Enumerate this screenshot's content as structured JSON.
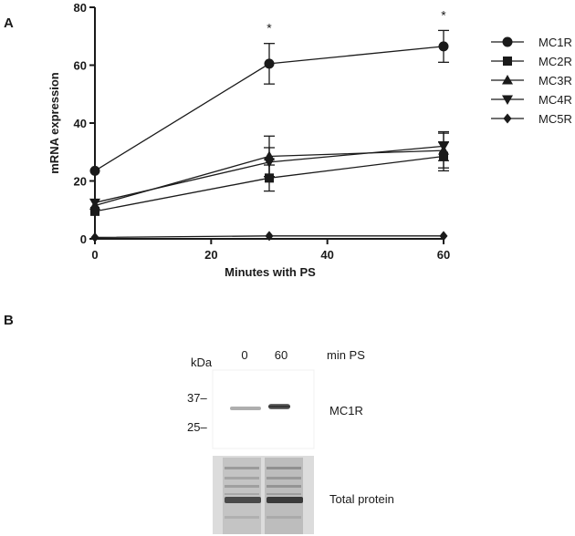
{
  "panel_a_label": "A",
  "panel_b_label": "B",
  "chart_data": {
    "type": "line",
    "xlabel": "Minutes with PS",
    "ylabel": "mRNA expression",
    "x": [
      0,
      30,
      60
    ],
    "xticks": [
      0,
      20,
      40,
      60
    ],
    "yticks": [
      0,
      20,
      40,
      60,
      80
    ],
    "xlim": [
      0,
      60
    ],
    "ylim": [
      0,
      80
    ],
    "legend_position": "right",
    "significance_marker": "*",
    "significance_x": [
      30,
      60
    ],
    "series": [
      {
        "name": "MC1R",
        "marker": "circle",
        "values": [
          23.5,
          60.5,
          66.5
        ],
        "errors": [
          0,
          7,
          5.5
        ]
      },
      {
        "name": "MC2R",
        "marker": "square",
        "values": [
          9.5,
          21,
          28.5
        ],
        "errors": [
          0,
          4.5,
          5
        ]
      },
      {
        "name": "MC3R",
        "marker": "triangle-up",
        "values": [
          11.5,
          28.5,
          30.5
        ],
        "errors": [
          0,
          7,
          6
        ]
      },
      {
        "name": "MC4R",
        "marker": "triangle-down",
        "values": [
          12.5,
          26.5,
          32
        ],
        "errors": [
          0,
          5,
          5
        ]
      },
      {
        "name": "MC5R",
        "marker": "diamond",
        "values": [
          0.5,
          1,
          1
        ],
        "errors": [
          0,
          0,
          0
        ]
      }
    ]
  },
  "blot": {
    "kda_label": "kDa",
    "markers": [
      "37–",
      "25–"
    ],
    "lanes": [
      "0",
      "60"
    ],
    "lane_unit": "min PS",
    "band_label": "MC1R",
    "total_label": "Total protein"
  }
}
